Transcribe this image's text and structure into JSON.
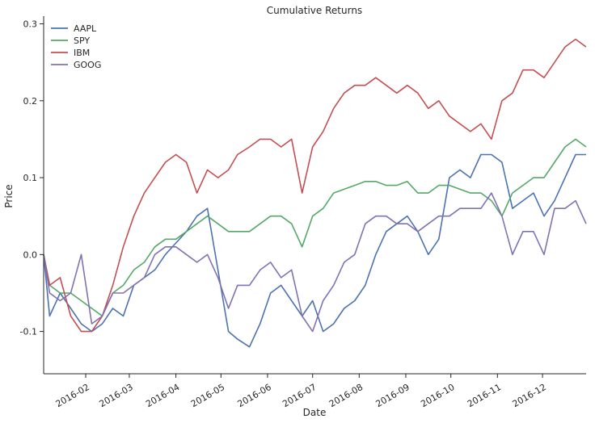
{
  "chart_data": {
    "type": "line",
    "title": "Cumulative Returns",
    "xlabel": "Date",
    "ylabel": "Price",
    "xlim": [
      "2016-01-04",
      "2016-12-30"
    ],
    "ylim": [
      -0.155,
      0.31
    ],
    "yticks": [
      "-0.1",
      "0.0",
      "0.1",
      "0.2",
      "0.3"
    ],
    "ytick_values": [
      -0.1,
      0.0,
      0.1,
      0.2,
      0.3
    ],
    "xticks": [
      "2016-02",
      "2016-03",
      "2016-04",
      "2016-05",
      "2016-06",
      "2016-07",
      "2016-08",
      "2016-09",
      "2016-10",
      "2016-11",
      "2016-12"
    ],
    "xtick_dates": [
      "2016-02-01",
      "2016-03-01",
      "2016-04-01",
      "2016-05-01",
      "2016-06-01",
      "2016-07-01",
      "2016-08-01",
      "2016-09-01",
      "2016-10-01",
      "2016-11-01",
      "2016-12-01"
    ],
    "grid": false,
    "legend": "top-left",
    "series": [
      {
        "name": "AAPL",
        "color": "#4c72b0",
        "x": [
          "2016-01-04",
          "2016-01-08",
          "2016-01-15",
          "2016-01-22",
          "2016-01-29",
          "2016-02-05",
          "2016-02-12",
          "2016-02-19",
          "2016-02-26",
          "2016-03-04",
          "2016-03-11",
          "2016-03-18",
          "2016-03-25",
          "2016-04-01",
          "2016-04-08",
          "2016-04-15",
          "2016-04-22",
          "2016-04-29",
          "2016-05-06",
          "2016-05-12",
          "2016-05-20",
          "2016-05-27",
          "2016-06-03",
          "2016-06-10",
          "2016-06-17",
          "2016-06-24",
          "2016-07-01",
          "2016-07-08",
          "2016-07-15",
          "2016-07-22",
          "2016-07-29",
          "2016-08-05",
          "2016-08-12",
          "2016-08-19",
          "2016-08-26",
          "2016-09-02",
          "2016-09-09",
          "2016-09-16",
          "2016-09-23",
          "2016-09-30",
          "2016-10-07",
          "2016-10-14",
          "2016-10-21",
          "2016-10-28",
          "2016-11-04",
          "2016-11-11",
          "2016-11-18",
          "2016-11-25",
          "2016-12-02",
          "2016-12-09",
          "2016-12-16",
          "2016-12-23",
          "2016-12-30"
        ],
        "y": [
          0.0,
          -0.08,
          -0.05,
          -0.07,
          -0.09,
          -0.1,
          -0.09,
          -0.07,
          -0.08,
          -0.04,
          -0.03,
          -0.02,
          0.0,
          0.015,
          0.03,
          0.05,
          0.06,
          -0.02,
          -0.1,
          -0.11,
          -0.12,
          -0.09,
          -0.05,
          -0.04,
          -0.06,
          -0.08,
          -0.06,
          -0.1,
          -0.09,
          -0.07,
          -0.06,
          -0.04,
          0.0,
          0.03,
          0.04,
          0.05,
          0.03,
          0.0,
          0.02,
          0.1,
          0.11,
          0.1,
          0.13,
          0.13,
          0.12,
          0.06,
          0.07,
          0.08,
          0.05,
          0.07,
          0.1,
          0.13,
          0.13
        ]
      },
      {
        "name": "SPY",
        "color": "#55a868",
        "x": [
          "2016-01-04",
          "2016-01-08",
          "2016-01-15",
          "2016-01-22",
          "2016-01-29",
          "2016-02-05",
          "2016-02-12",
          "2016-02-19",
          "2016-02-26",
          "2016-03-04",
          "2016-03-11",
          "2016-03-18",
          "2016-03-25",
          "2016-04-01",
          "2016-04-08",
          "2016-04-15",
          "2016-04-22",
          "2016-04-29",
          "2016-05-06",
          "2016-05-12",
          "2016-05-20",
          "2016-05-27",
          "2016-06-03",
          "2016-06-10",
          "2016-06-17",
          "2016-06-24",
          "2016-07-01",
          "2016-07-08",
          "2016-07-15",
          "2016-07-22",
          "2016-07-29",
          "2016-08-05",
          "2016-08-12",
          "2016-08-19",
          "2016-08-26",
          "2016-09-02",
          "2016-09-09",
          "2016-09-16",
          "2016-09-23",
          "2016-09-30",
          "2016-10-07",
          "2016-10-14",
          "2016-10-21",
          "2016-10-28",
          "2016-11-04",
          "2016-11-11",
          "2016-11-18",
          "2016-11-25",
          "2016-12-02",
          "2016-12-09",
          "2016-12-16",
          "2016-12-23",
          "2016-12-30"
        ],
        "y": [
          0.0,
          -0.04,
          -0.05,
          -0.05,
          -0.06,
          -0.07,
          -0.08,
          -0.05,
          -0.04,
          -0.02,
          -0.01,
          0.01,
          0.02,
          0.02,
          0.03,
          0.04,
          0.05,
          0.04,
          0.03,
          0.03,
          0.03,
          0.04,
          0.05,
          0.05,
          0.04,
          0.01,
          0.05,
          0.06,
          0.08,
          0.085,
          0.09,
          0.095,
          0.095,
          0.09,
          0.09,
          0.095,
          0.08,
          0.08,
          0.09,
          0.09,
          0.085,
          0.08,
          0.08,
          0.07,
          0.05,
          0.08,
          0.09,
          0.1,
          0.1,
          0.12,
          0.14,
          0.15,
          0.14
        ]
      },
      {
        "name": "IBM",
        "color": "#c44e52",
        "x": [
          "2016-01-04",
          "2016-01-08",
          "2016-01-15",
          "2016-01-22",
          "2016-01-29",
          "2016-02-05",
          "2016-02-12",
          "2016-02-19",
          "2016-02-26",
          "2016-03-04",
          "2016-03-11",
          "2016-03-18",
          "2016-03-25",
          "2016-04-01",
          "2016-04-08",
          "2016-04-15",
          "2016-04-22",
          "2016-04-29",
          "2016-05-06",
          "2016-05-12",
          "2016-05-20",
          "2016-05-27",
          "2016-06-03",
          "2016-06-10",
          "2016-06-17",
          "2016-06-24",
          "2016-07-01",
          "2016-07-08",
          "2016-07-15",
          "2016-07-22",
          "2016-07-29",
          "2016-08-05",
          "2016-08-12",
          "2016-08-19",
          "2016-08-26",
          "2016-09-02",
          "2016-09-09",
          "2016-09-16",
          "2016-09-23",
          "2016-09-30",
          "2016-10-07",
          "2016-10-14",
          "2016-10-21",
          "2016-10-28",
          "2016-11-04",
          "2016-11-11",
          "2016-11-18",
          "2016-11-25",
          "2016-12-02",
          "2016-12-09",
          "2016-12-16",
          "2016-12-23",
          "2016-12-30"
        ],
        "y": [
          0.0,
          -0.04,
          -0.03,
          -0.08,
          -0.1,
          -0.1,
          -0.08,
          -0.04,
          0.01,
          0.05,
          0.08,
          0.1,
          0.12,
          0.13,
          0.12,
          0.08,
          0.11,
          0.1,
          0.11,
          0.13,
          0.14,
          0.15,
          0.15,
          0.14,
          0.15,
          0.08,
          0.14,
          0.16,
          0.19,
          0.21,
          0.22,
          0.22,
          0.23,
          0.22,
          0.21,
          0.22,
          0.21,
          0.19,
          0.2,
          0.18,
          0.17,
          0.16,
          0.17,
          0.15,
          0.2,
          0.21,
          0.24,
          0.24,
          0.23,
          0.25,
          0.27,
          0.28,
          0.27
        ]
      },
      {
        "name": "GOOG",
        "color": "#8172b2",
        "x": [
          "2016-01-04",
          "2016-01-08",
          "2016-01-15",
          "2016-01-22",
          "2016-01-29",
          "2016-02-05",
          "2016-02-12",
          "2016-02-19",
          "2016-02-26",
          "2016-03-04",
          "2016-03-11",
          "2016-03-18",
          "2016-03-25",
          "2016-04-01",
          "2016-04-08",
          "2016-04-15",
          "2016-04-22",
          "2016-04-29",
          "2016-05-06",
          "2016-05-12",
          "2016-05-20",
          "2016-05-27",
          "2016-06-03",
          "2016-06-10",
          "2016-06-17",
          "2016-06-24",
          "2016-07-01",
          "2016-07-08",
          "2016-07-15",
          "2016-07-22",
          "2016-07-29",
          "2016-08-05",
          "2016-08-12",
          "2016-08-19",
          "2016-08-26",
          "2016-09-02",
          "2016-09-09",
          "2016-09-16",
          "2016-09-23",
          "2016-09-30",
          "2016-10-07",
          "2016-10-14",
          "2016-10-21",
          "2016-10-28",
          "2016-11-04",
          "2016-11-11",
          "2016-11-18",
          "2016-11-25",
          "2016-12-02",
          "2016-12-09",
          "2016-12-16",
          "2016-12-23",
          "2016-12-30"
        ],
        "y": [
          0.0,
          -0.05,
          -0.06,
          -0.05,
          0.0,
          -0.09,
          -0.08,
          -0.05,
          -0.05,
          -0.04,
          -0.03,
          0.0,
          0.01,
          0.01,
          0.0,
          -0.01,
          0.0,
          -0.03,
          -0.07,
          -0.04,
          -0.04,
          -0.02,
          -0.01,
          -0.03,
          -0.02,
          -0.08,
          -0.1,
          -0.06,
          -0.04,
          -0.01,
          0.0,
          0.04,
          0.05,
          0.05,
          0.04,
          0.04,
          0.03,
          0.04,
          0.05,
          0.05,
          0.06,
          0.06,
          0.06,
          0.08,
          0.05,
          0.0,
          0.03,
          0.03,
          0.0,
          0.06,
          0.06,
          0.07,
          0.04
        ]
      }
    ]
  }
}
